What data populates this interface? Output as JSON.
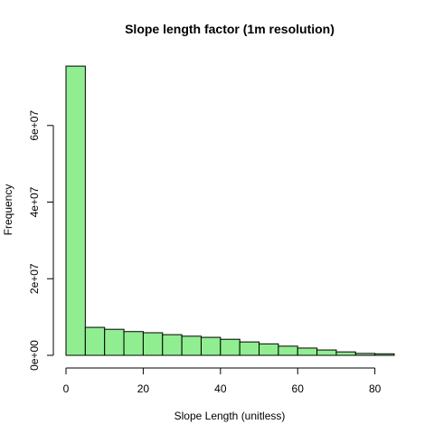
{
  "chart_data": {
    "type": "bar",
    "title": "Slope length factor (1m resolution)",
    "xlabel": "Slope Length (unitless)",
    "ylabel": "Frequency",
    "bin_width": 5,
    "bins": [
      {
        "x0": 0,
        "x1": 5,
        "count": 75500000
      },
      {
        "x0": 5,
        "x1": 10,
        "count": 7300000
      },
      {
        "x0": 10,
        "x1": 15,
        "count": 6800000
      },
      {
        "x0": 15,
        "x1": 20,
        "count": 6200000
      },
      {
        "x0": 20,
        "x1": 25,
        "count": 5900000
      },
      {
        "x0": 25,
        "x1": 30,
        "count": 5400000
      },
      {
        "x0": 30,
        "x1": 35,
        "count": 5000000
      },
      {
        "x0": 35,
        "x1": 40,
        "count": 4700000
      },
      {
        "x0": 40,
        "x1": 45,
        "count": 4200000
      },
      {
        "x0": 45,
        "x1": 50,
        "count": 3500000
      },
      {
        "x0": 50,
        "x1": 55,
        "count": 3000000
      },
      {
        "x0": 55,
        "x1": 60,
        "count": 2400000
      },
      {
        "x0": 60,
        "x1": 65,
        "count": 1900000
      },
      {
        "x0": 65,
        "x1": 70,
        "count": 1400000
      },
      {
        "x0": 70,
        "x1": 75,
        "count": 900000
      },
      {
        "x0": 75,
        "x1": 80,
        "count": 500000
      },
      {
        "x0": 80,
        "x1": 85,
        "count": 400000
      }
    ],
    "xlim": [
      0,
      85
    ],
    "ylim": [
      0,
      76000000
    ],
    "x_ticks": [
      0,
      20,
      40,
      60,
      80
    ],
    "x_tick_labels": [
      "0",
      "20",
      "40",
      "60",
      "80"
    ],
    "y_ticks": [
      0,
      20000000,
      40000000,
      60000000
    ],
    "y_tick_labels": [
      "0e+00",
      "2e+07",
      "4e+07",
      "6e+07"
    ],
    "bar_color": "#90ee90",
    "bar_border_color": "#000000",
    "grid": false,
    "legend": "none"
  }
}
